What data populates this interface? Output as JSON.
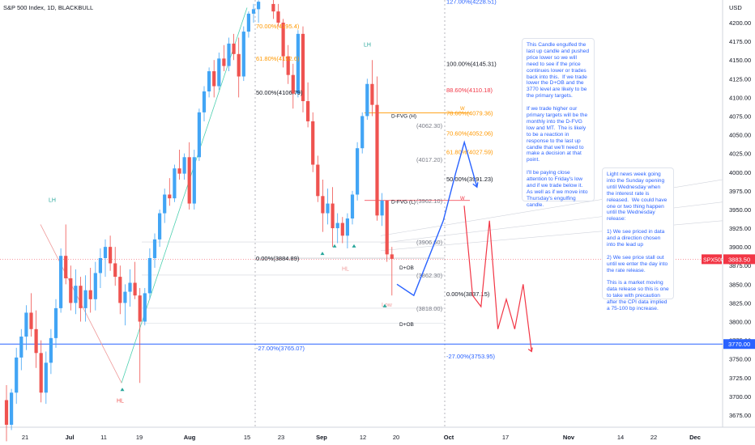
{
  "chart_data": {
    "type": "candlestick",
    "title": "S&P 500 Index, 1D, BLACKBULL",
    "price_axis": {
      "label": "USD",
      "ylim": [
        3650,
        4220
      ],
      "ticks": [
        3675,
        3700,
        3725,
        3750,
        3775,
        3800,
        3825,
        3850,
        3875,
        3900,
        3925,
        3950,
        3975,
        4000,
        4025,
        4050,
        4075,
        4100,
        4125,
        4150,
        4175,
        4200
      ]
    },
    "time_axis": {
      "ticks": [
        "21",
        "Jul",
        "11",
        "19",
        "Aug",
        "15",
        "23",
        "Sep",
        "12",
        "20",
        "Oct",
        "17",
        "Nov",
        "14",
        "22",
        "Dec"
      ],
      "bold_ticks": [
        "Jul",
        "Aug",
        "Sep",
        "Oct",
        "Nov",
        "Dec"
      ]
    },
    "candles": [
      {
        "o": 3695,
        "h": 3715,
        "l": 3640,
        "c": 3662
      },
      {
        "o": 3662,
        "h": 3710,
        "l": 3655,
        "c": 3705
      },
      {
        "o": 3705,
        "h": 3765,
        "l": 3690,
        "c": 3752
      },
      {
        "o": 3752,
        "h": 3790,
        "l": 3735,
        "c": 3780
      },
      {
        "o": 3780,
        "h": 3822,
        "l": 3762,
        "c": 3812
      },
      {
        "o": 3812,
        "h": 3838,
        "l": 3780,
        "c": 3790
      },
      {
        "o": 3790,
        "h": 3815,
        "l": 3738,
        "c": 3758
      },
      {
        "o": 3758,
        "h": 3775,
        "l": 3692,
        "c": 3705
      },
      {
        "o": 3705,
        "h": 3760,
        "l": 3690,
        "c": 3745
      },
      {
        "o": 3745,
        "h": 3790,
        "l": 3730,
        "c": 3778
      },
      {
        "o": 3778,
        "h": 3830,
        "l": 3765,
        "c": 3818
      },
      {
        "o": 3818,
        "h": 3898,
        "l": 3812,
        "c": 3888
      },
      {
        "o": 3888,
        "h": 3930,
        "l": 3850,
        "c": 3858
      },
      {
        "o": 3858,
        "h": 3875,
        "l": 3815,
        "c": 3825
      },
      {
        "o": 3825,
        "h": 3870,
        "l": 3810,
        "c": 3848
      },
      {
        "o": 3848,
        "h": 3860,
        "l": 3800,
        "c": 3818
      },
      {
        "o": 3818,
        "h": 3862,
        "l": 3800,
        "c": 3842
      },
      {
        "o": 3842,
        "h": 3872,
        "l": 3812,
        "c": 3830
      },
      {
        "o": 3830,
        "h": 3880,
        "l": 3815,
        "c": 3865
      },
      {
        "o": 3865,
        "h": 3898,
        "l": 3845,
        "c": 3885
      },
      {
        "o": 3885,
        "h": 3910,
        "l": 3860,
        "c": 3900
      },
      {
        "o": 3900,
        "h": 3915,
        "l": 3868,
        "c": 3878
      },
      {
        "o": 3878,
        "h": 3900,
        "l": 3848,
        "c": 3860
      },
      {
        "o": 3860,
        "h": 3875,
        "l": 3810,
        "c": 3825
      },
      {
        "o": 3825,
        "h": 3850,
        "l": 3795,
        "c": 3840
      },
      {
        "o": 3840,
        "h": 3870,
        "l": 3820,
        "c": 3852
      },
      {
        "o": 3852,
        "h": 3880,
        "l": 3830,
        "c": 3835
      },
      {
        "o": 3835,
        "h": 3845,
        "l": 3718,
        "c": 3800
      },
      {
        "o": 3800,
        "h": 3845,
        "l": 3795,
        "c": 3838
      },
      {
        "o": 3838,
        "h": 3898,
        "l": 3830,
        "c": 3885
      },
      {
        "o": 3885,
        "h": 3918,
        "l": 3872,
        "c": 3910
      },
      {
        "o": 3910,
        "h": 3950,
        "l": 3900,
        "c": 3945
      },
      {
        "o": 3945,
        "h": 3978,
        "l": 3932,
        "c": 3970
      },
      {
        "o": 3970,
        "h": 3992,
        "l": 3955,
        "c": 3965
      },
      {
        "o": 3965,
        "h": 4010,
        "l": 3960,
        "c": 4005
      },
      {
        "o": 4005,
        "h": 4030,
        "l": 3990,
        "c": 3998
      },
      {
        "o": 3998,
        "h": 4025,
        "l": 3990,
        "c": 4020
      },
      {
        "o": 4020,
        "h": 4040,
        "l": 3950,
        "c": 3958
      },
      {
        "o": 3958,
        "h": 4030,
        "l": 3950,
        "c": 4020
      },
      {
        "o": 4020,
        "h": 4085,
        "l": 4015,
        "c": 4080
      },
      {
        "o": 4080,
        "h": 4115,
        "l": 4068,
        "c": 4108
      },
      {
        "o": 4108,
        "h": 4140,
        "l": 4100,
        "c": 4135
      },
      {
        "o": 4135,
        "h": 4150,
        "l": 4100,
        "c": 4115
      },
      {
        "o": 4115,
        "h": 4160,
        "l": 4110,
        "c": 4152
      },
      {
        "o": 4152,
        "h": 4170,
        "l": 4135,
        "c": 4142
      },
      {
        "o": 4142,
        "h": 4180,
        "l": 4135,
        "c": 4172
      },
      {
        "o": 4172,
        "h": 4185,
        "l": 4150,
        "c": 4158
      },
      {
        "o": 4158,
        "h": 4180,
        "l": 4100,
        "c": 4128
      },
      {
        "o": 4128,
        "h": 4195,
        "l": 4122,
        "c": 4188
      },
      {
        "o": 4188,
        "h": 4215,
        "l": 4180,
        "c": 4212
      },
      {
        "o": 4212,
        "h": 4225,
        "l": 4200,
        "c": 4218
      },
      {
        "o": 4218,
        "h": 4230,
        "l": 4200,
        "c": 4228
      },
      {
        "o": 4228,
        "h": 4228,
        "l": 4228,
        "c": 4228
      },
      {
        "o": 4228,
        "h": 4228,
        "l": 4228,
        "c": 4228
      },
      {
        "o": 4225,
        "h": 4232,
        "l": 4205,
        "c": 4215
      },
      {
        "o": 4215,
        "h": 4225,
        "l": 4195,
        "c": 4200
      },
      {
        "o": 4200,
        "h": 4205,
        "l": 4140,
        "c": 4155
      },
      {
        "o": 4155,
        "h": 4170,
        "l": 4118,
        "c": 4130
      },
      {
        "o": 4130,
        "h": 4145,
        "l": 4085,
        "c": 4105
      },
      {
        "o": 4105,
        "h": 4190,
        "l": 4100,
        "c": 4185
      },
      {
        "o": 4185,
        "h": 4195,
        "l": 4080,
        "c": 4095
      },
      {
        "o": 4095,
        "h": 4120,
        "l": 4060,
        "c": 4068
      },
      {
        "o": 4068,
        "h": 4080,
        "l": 4000,
        "c": 4010
      },
      {
        "o": 4010,
        "h": 4022,
        "l": 3960,
        "c": 3968
      },
      {
        "o": 3968,
        "h": 3990,
        "l": 3920,
        "c": 3945
      },
      {
        "o": 3945,
        "h": 3978,
        "l": 3930,
        "c": 3958
      },
      {
        "o": 3958,
        "h": 3980,
        "l": 3900,
        "c": 3925
      },
      {
        "o": 3925,
        "h": 3945,
        "l": 3905,
        "c": 3932
      },
      {
        "o": 3932,
        "h": 3940,
        "l": 3905,
        "c": 3915
      },
      {
        "o": 3915,
        "h": 3945,
        "l": 3898,
        "c": 3938
      },
      {
        "o": 3938,
        "h": 3975,
        "l": 3930,
        "c": 3970
      },
      {
        "o": 3970,
        "h": 4040,
        "l": 3962,
        "c": 4032
      },
      {
        "o": 4032,
        "h": 4080,
        "l": 4025,
        "c": 4075
      },
      {
        "o": 4075,
        "h": 4125,
        "l": 4070,
        "c": 4118
      },
      {
        "o": 4118,
        "h": 4150,
        "l": 4075,
        "c": 4090
      },
      {
        "o": 4090,
        "h": 4128,
        "l": 3935,
        "c": 3942
      },
      {
        "o": 3942,
        "h": 3972,
        "l": 3928,
        "c": 3962
      },
      {
        "o": 3962,
        "h": 3960,
        "l": 3880,
        "c": 3890
      },
      {
        "o": 3890,
        "h": 3900,
        "l": 3835,
        "c": 3884
      }
    ],
    "fib_levels": [
      {
        "label": "127.00%(4228.51)",
        "value": 4228.51,
        "color": "#2962ff"
      },
      {
        "label": "100.00%(4145.31)",
        "value": 4145.31,
        "color": "#131722"
      },
      {
        "label": "88.60%(4110.18)",
        "value": 4110.18,
        "color": "#f23645"
      },
      {
        "label": "78.60%(4079.36)",
        "value": 4079.36,
        "color": "#ff9800"
      },
      {
        "label": "70.60%(4052.06)",
        "value": 4052.06,
        "color": "#ff9800"
      },
      {
        "label": "61.80%(4027.59)",
        "value": 4027.59,
        "color": "#ff9800"
      },
      {
        "label": "50.00%(3991.23)",
        "value": 3991.23,
        "color": "#131722"
      },
      {
        "label": "0.00%(3837.15)",
        "value": 3837.15,
        "color": "#131722"
      },
      {
        "label": "-27.00%(3753.95)",
        "value": 3753.95,
        "color": "#2962ff"
      }
    ],
    "fib_levels_left": [
      {
        "label": "70.00%(4195.4)",
        "value": 4195.4,
        "color": "#ff9800"
      },
      {
        "label": "61.80%(4152.6)",
        "value": 4152.6,
        "color": "#ff9800"
      },
      {
        "label": "50.00%(4106.79)",
        "value": 4106.79,
        "color": "#131722"
      },
      {
        "label": "0.00%(3884.89)",
        "value": 3884.89,
        "color": "#131722"
      },
      {
        "label": "-27.00%(3765.07)",
        "value": 3765.07,
        "color": "#2962ff"
      }
    ],
    "level_labels": [
      {
        "label": "(4062.30)",
        "value": 4062.3
      },
      {
        "label": "(4017.20)",
        "value": 4017.2
      },
      {
        "label": "(3962.10)",
        "value": 3962.1
      },
      {
        "label": "(3906.60)",
        "value": 3906.6
      },
      {
        "label": "(3862.30)",
        "value": 3862.3
      },
      {
        "label": "(3818.00)",
        "value": 3818.0
      }
    ],
    "zone_labels": [
      "D-FVG (H)",
      "D-FVG (L)",
      "D+OB",
      "D+OB"
    ],
    "pivot_labels": [
      "LH",
      "LH",
      "HL",
      "HL",
      "Low"
    ],
    "markers": [
      "W",
      "W"
    ],
    "price_tags": [
      {
        "symbol": "SPX500",
        "price": "3883.50",
        "color": "#f23645"
      },
      {
        "price": "3770.00",
        "color": "#2962ff"
      }
    ],
    "projections": {
      "blue": [
        [
          3880,
          3850
        ],
        [
          3900,
          3835
        ],
        [
          3935,
          3935
        ],
        [
          3950,
          4000
        ],
        [
          3960,
          4040
        ],
        [
          3975,
          3980
        ]
      ],
      "red": [
        [
          3955,
          3955
        ],
        [
          3965,
          3835
        ],
        [
          3975,
          3820
        ],
        [
          3985,
          3935
        ],
        [
          3995,
          3790
        ],
        [
          4005,
          3830
        ],
        [
          4015,
          3790
        ],
        [
          4025,
          3850
        ],
        [
          4035,
          3760
        ]
      ]
    },
    "notes": [
      "This Candle engulfed the last up candle and pushed price lower so we will need to see if the price continues lower or trades back into this.  If we trade lower the D+OB and the 3770 level are likely to be the primary targets.\n\nIf we trade higher our primary targets will be the monthly into the D-FVG low and MT.  The is likely to be a reaction in response to the last up candle that we'll need to make a decision at that point.\n\nI'll be paying close attention to Friday's low and if we trade below it.  As well as if we move into Thursday's engulfing candle.",
      "Light news week going into the Sunday opening until Wednesday when the interest rate is released.  We could have one or two thing happen until the Wednesday release:\n\n1) We see priced in data and a direction chosen into the lead up\n\n2) We see price stall out until we enter the day into the rate release.\n\nThis is a market moving data release so this is one to take with precaution after the CPI data implied a 75-100 bp increase."
    ],
    "colors": {
      "up": "#42a5f5",
      "down": "#ef5350",
      "fib_blue": "#2962ff",
      "orange": "#ff9800",
      "projection_blue": "#2962ff",
      "projection_red": "#f23645",
      "green_arrow": "#26a69a"
    }
  }
}
